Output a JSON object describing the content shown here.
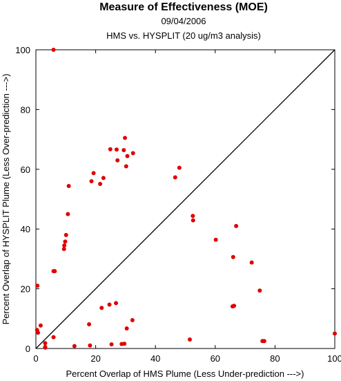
{
  "chart_data": {
    "type": "scatter",
    "title": "Measure of Effectiveness (MOE)",
    "subtitle": "09/04/2006",
    "subtitle2": "HMS vs. HYSPLIT  (20 ug/m3 analysis)",
    "xlabel": "Percent Overlap of HMS Plume (Less Under-prediction --->)",
    "ylabel": "Percent Overlap of HYSPLIT Plume (Less Over-prediction --->)",
    "xlim": [
      0,
      100
    ],
    "ylim": [
      0,
      100
    ],
    "xticks": [
      "0",
      "20",
      "40",
      "60",
      "80",
      "100"
    ],
    "yticks": [
      "0",
      "20",
      "40",
      "60",
      "80",
      "100"
    ],
    "reference_line": "y = x",
    "grid": false,
    "point_color": "#e00000",
    "points": [
      [
        5.9,
        100
      ],
      [
        0.5,
        21
      ],
      [
        0.4,
        6.2
      ],
      [
        0.7,
        5.3
      ],
      [
        1.6,
        7.7
      ],
      [
        3.1,
        1.8
      ],
      [
        3.1,
        0.5
      ],
      [
        3.1,
        0.3
      ],
      [
        5.9,
        3.8
      ],
      [
        5.9,
        25.9
      ],
      [
        6.3,
        25.9
      ],
      [
        9.4,
        33.3
      ],
      [
        9.5,
        34.5
      ],
      [
        9.8,
        35.8
      ],
      [
        10.1,
        38.0
      ],
      [
        10.7,
        45.0
      ],
      [
        11.0,
        54.4
      ],
      [
        12.9,
        0.8
      ],
      [
        17.8,
        8.1
      ],
      [
        18.1,
        1.0
      ],
      [
        18.6,
        56.0
      ],
      [
        19.3,
        58.7
      ],
      [
        21.5,
        55.1
      ],
      [
        22.0,
        13.6
      ],
      [
        22.6,
        57.1
      ],
      [
        24.6,
        14.7
      ],
      [
        24.9,
        66.7
      ],
      [
        25.3,
        1.4
      ],
      [
        26.8,
        15.2
      ],
      [
        27.0,
        66.6
      ],
      [
        27.3,
        63.0
      ],
      [
        28.7,
        1.5
      ],
      [
        29.4,
        66.4
      ],
      [
        29.6,
        1.6
      ],
      [
        29.8,
        70.5
      ],
      [
        30.2,
        61.0
      ],
      [
        30.4,
        6.7
      ],
      [
        30.6,
        64.4
      ],
      [
        32.3,
        9.5
      ],
      [
        32.5,
        65.4
      ],
      [
        46.6,
        57.3
      ],
      [
        48.0,
        60.5
      ],
      [
        51.5,
        3.0
      ],
      [
        52.5,
        44.4
      ],
      [
        52.6,
        42.9
      ],
      [
        60.2,
        36.4
      ],
      [
        65.8,
        14.1
      ],
      [
        66.0,
        30.6
      ],
      [
        66.3,
        14.3
      ],
      [
        67.0,
        41.0
      ],
      [
        72.2,
        28.8
      ],
      [
        74.9,
        19.4
      ],
      [
        75.8,
        2.5
      ],
      [
        76.4,
        2.5
      ],
      [
        100,
        5.0
      ]
    ]
  }
}
